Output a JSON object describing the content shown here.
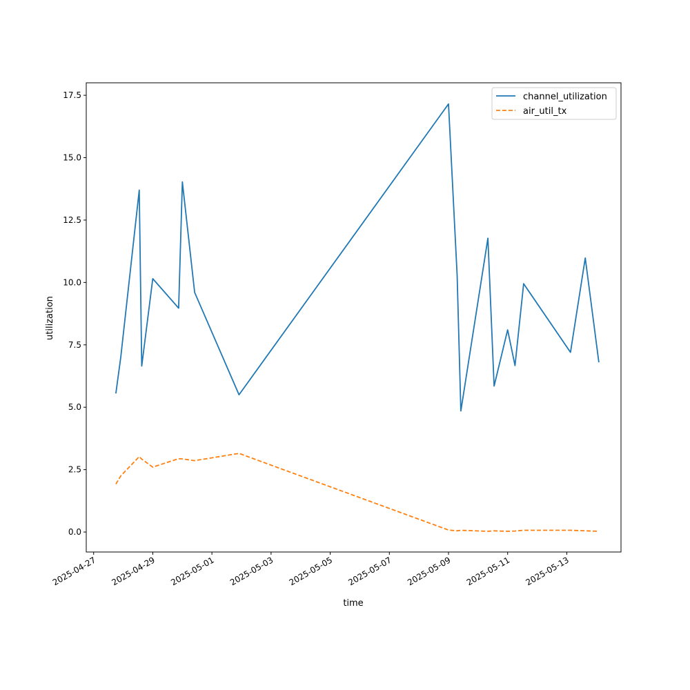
{
  "chart_data": {
    "type": "line",
    "title": "",
    "xlabel": "time",
    "ylabel": "utilization",
    "x_type": "datetime",
    "xlim": [
      "2025-04-26T18:00",
      "2025-05-14T20:00"
    ],
    "ylim": [
      -0.8,
      18.0
    ],
    "x_ticks": [
      "2025-04-27",
      "2025-04-29",
      "2025-05-01",
      "2025-05-03",
      "2025-05-05",
      "2025-05-07",
      "2025-05-09",
      "2025-05-11",
      "2025-05-13"
    ],
    "y_ticks": [
      0.0,
      2.5,
      5.0,
      7.5,
      10.0,
      12.5,
      15.0,
      17.5
    ],
    "y_tick_labels": [
      "0.0",
      "2.5",
      "5.0",
      "7.5",
      "10.0",
      "12.5",
      "15.0",
      "17.5"
    ],
    "grid": false,
    "legend_position": "top-right",
    "series": [
      {
        "name": "channel_utilization",
        "color": "#1f77b4",
        "style": "solid",
        "points": [
          {
            "x": "2025-04-27T18:00",
            "y": 5.55
          },
          {
            "x": "2025-04-27T22:00",
            "y": 7.0
          },
          {
            "x": "2025-04-28T13:00",
            "y": 13.7
          },
          {
            "x": "2025-04-28T15:00",
            "y": 6.65
          },
          {
            "x": "2025-04-29T00:00",
            "y": 10.15
          },
          {
            "x": "2025-04-29T21:00",
            "y": 8.97
          },
          {
            "x": "2025-04-30T00:00",
            "y": 14.03
          },
          {
            "x": "2025-04-30T10:00",
            "y": 9.6
          },
          {
            "x": "2025-05-01T22:00",
            "y": 5.5
          },
          {
            "x": "2025-05-09T00:00",
            "y": 17.15
          },
          {
            "x": "2025-05-09T07:00",
            "y": 10.3
          },
          {
            "x": "2025-05-09T10:00",
            "y": 4.85
          },
          {
            "x": "2025-05-10T08:00",
            "y": 11.77
          },
          {
            "x": "2025-05-10T13:00",
            "y": 5.85
          },
          {
            "x": "2025-05-11T00:00",
            "y": 8.1
          },
          {
            "x": "2025-05-11T06:00",
            "y": 6.67
          },
          {
            "x": "2025-05-11T13:00",
            "y": 9.95
          },
          {
            "x": "2025-05-13T03:00",
            "y": 7.2
          },
          {
            "x": "2025-05-13T15:00",
            "y": 10.98
          },
          {
            "x": "2025-05-14T02:00",
            "y": 6.8
          }
        ]
      },
      {
        "name": "air_util_tx",
        "color": "#ff7f0e",
        "style": "dashed",
        "points": [
          {
            "x": "2025-04-27T18:00",
            "y": 1.92
          },
          {
            "x": "2025-04-27T22:00",
            "y": 2.25
          },
          {
            "x": "2025-04-28T13:00",
            "y": 3.02
          },
          {
            "x": "2025-04-28T15:00",
            "y": 2.92
          },
          {
            "x": "2025-04-29T00:00",
            "y": 2.6
          },
          {
            "x": "2025-04-29T21:00",
            "y": 2.94
          },
          {
            "x": "2025-04-30T00:00",
            "y": 2.93
          },
          {
            "x": "2025-04-30T10:00",
            "y": 2.86
          },
          {
            "x": "2025-05-01T22:00",
            "y": 3.15
          },
          {
            "x": "2025-05-09T00:00",
            "y": 0.08
          },
          {
            "x": "2025-05-09T07:00",
            "y": 0.05
          },
          {
            "x": "2025-05-09T10:00",
            "y": 0.07
          },
          {
            "x": "2025-05-10T08:00",
            "y": 0.03
          },
          {
            "x": "2025-05-10T13:00",
            "y": 0.05
          },
          {
            "x": "2025-05-11T00:00",
            "y": 0.03
          },
          {
            "x": "2025-05-11T06:00",
            "y": 0.04
          },
          {
            "x": "2025-05-11T13:00",
            "y": 0.07
          },
          {
            "x": "2025-05-13T03:00",
            "y": 0.07
          },
          {
            "x": "2025-05-13T15:00",
            "y": 0.05
          },
          {
            "x": "2025-05-14T02:00",
            "y": 0.03
          }
        ]
      }
    ]
  }
}
